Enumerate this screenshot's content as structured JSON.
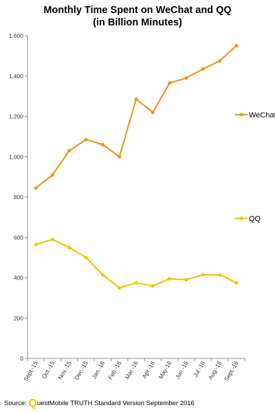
{
  "chart_data": {
    "type": "line",
    "title_line1": "Monthly Time Spent on WeChat and QQ",
    "title_line2": "(in Billion Minutes)",
    "xlabel": "",
    "ylabel": "",
    "categories": [
      "Sept.-15",
      "Oct.-15",
      "Nov.-15",
      "Dec.-15",
      "Jan.-16",
      "Feb.-16",
      "Mar.-16",
      "Apr.-16",
      "May-16",
      "Jun.-16",
      "Jul.-16",
      "Aug.-16",
      "Sept.-16"
    ],
    "ylim": [
      0,
      1600
    ],
    "yticks": [
      0,
      200,
      400,
      600,
      800,
      1000,
      1200,
      1400,
      1600
    ],
    "ytick_labels": [
      "0",
      "200",
      "400",
      "600",
      "800",
      "1,000",
      "1,200",
      "1,400",
      "1,600"
    ],
    "grid": false,
    "legend_placement": "right",
    "series": [
      {
        "name": "WeChat",
        "color": "#f0961e",
        "values": [
          845,
          910,
          1030,
          1085,
          1060,
          1000,
          1285,
          1220,
          1365,
          1390,
          1435,
          1475,
          1550
        ]
      },
      {
        "name": "QQ",
        "color": "#f5c400",
        "values": [
          565,
          590,
          550,
          500,
          415,
          350,
          375,
          360,
          395,
          390,
          415,
          415,
          375
        ]
      }
    ]
  },
  "source": {
    "prefix": "Source:",
    "logo_letter": "Q",
    "rest": "uestMobile TRUTH Standard Version September 2016"
  }
}
